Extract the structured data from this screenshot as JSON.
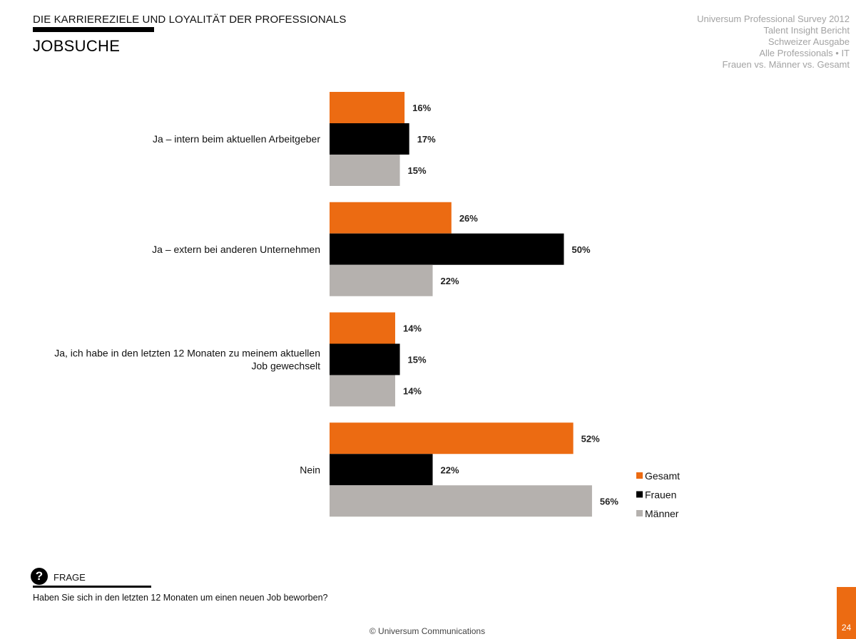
{
  "header": {
    "section_title": "DIE KARRIEREZIELE UND LOYALITÄT DER PROFESSIONALS",
    "page_title": "JOBSUCHE"
  },
  "meta_lines": [
    "Universum Professional Survey 2012",
    "Talent Insight Bericht",
    "Schweizer Ausgabe",
    "Alle Professionals • IT",
    "Frauen vs. Männer vs. Gesamt"
  ],
  "chart_data": {
    "type": "bar",
    "orientation": "horizontal",
    "categories": [
      "Ja – intern beim aktuellen Arbeitgeber",
      "Ja – extern bei anderen Unternehmen",
      "Ja, ich habe in den letzten 12 Monaten zu meinem aktuellen Job gewechselt",
      "Nein"
    ],
    "category_lines": [
      [
        "Ja – intern beim aktuellen Arbeitgeber"
      ],
      [
        "Ja – extern bei anderen Unternehmen"
      ],
      [
        "Ja, ich habe in den letzten 12 Monaten zu meinem aktuellen",
        "Job gewechselt"
      ],
      [
        "Nein"
      ]
    ],
    "series": [
      {
        "name": "Gesamt",
        "color": "#ec6b12",
        "values": [
          16,
          26,
          14,
          52
        ],
        "labels": [
          "16%",
          "26%",
          "14%",
          "52%"
        ]
      },
      {
        "name": "Frauen",
        "color": "#000000",
        "values": [
          17,
          50,
          15,
          22
        ],
        "labels": [
          "17%",
          "50%",
          "15%",
          "22%"
        ]
      },
      {
        "name": "Männer",
        "color": "#b5b1ae",
        "values": [
          15,
          22,
          14,
          56
        ],
        "labels": [
          "15%",
          "22%",
          "14%",
          "56%"
        ]
      }
    ],
    "unit": "%",
    "legend_position": "bottom-right",
    "grid": false,
    "axes_visible": false
  },
  "frage": {
    "icon": "question-icon",
    "label": "FRAGE",
    "question": "Haben Sie sich in den letzten 12 Monaten um einen neuen Job beworben?"
  },
  "footer": {
    "copyright": "© Universum Communications",
    "page_number": "24",
    "accent_color": "#ec6b12"
  }
}
